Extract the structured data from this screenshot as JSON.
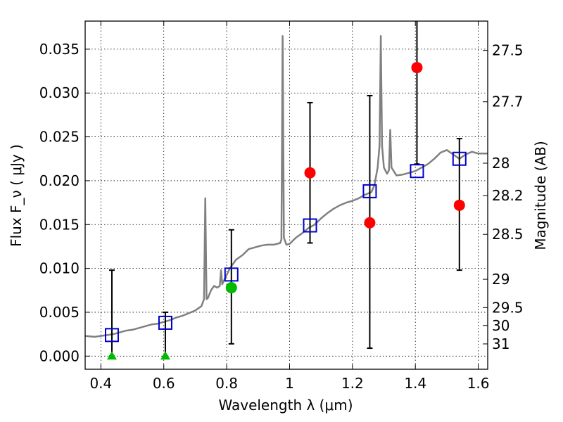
{
  "chart_data": {
    "type": "scatter",
    "xlabel": "Wavelength  λ (μm)",
    "ylabel": "Flux  F_ν  ( μJy )",
    "y2label": "Magnitude (AB)",
    "xlim": [
      0.35,
      1.63
    ],
    "ylim": [
      -0.0015,
      0.0382
    ],
    "grid": true,
    "x_ticks": [
      0.4,
      0.6,
      0.8,
      1.0,
      1.2,
      1.4,
      1.6
    ],
    "x_tick_labels": [
      "0.4",
      "0.6",
      "0.8",
      "1",
      "1.2",
      "1.4",
      "1.6"
    ],
    "y_ticks": [
      0.0,
      0.005,
      0.01,
      0.015,
      0.02,
      0.025,
      0.03,
      0.035
    ],
    "y_tick_labels": [
      "0.000",
      "0.005",
      "0.010",
      "0.015",
      "0.020",
      "0.025",
      "0.030",
      "0.035"
    ],
    "y2_ticks": [
      {
        "label": "27.5",
        "flux": 0.03486
      },
      {
        "label": "27.7",
        "flux": 0.029
      },
      {
        "label": "28",
        "flux": 0.022
      },
      {
        "label": "28.2",
        "flux": 0.0183
      },
      {
        "label": "28.5",
        "flux": 0.01388
      },
      {
        "label": "29",
        "flux": 0.00876
      },
      {
        "label": "29.5",
        "flux": 0.00553
      },
      {
        "label": "30",
        "flux": 0.00349
      },
      {
        "label": "31",
        "flux": 0.00139
      }
    ],
    "model_spectrum": {
      "color": "#808080",
      "points": [
        [
          0.35,
          0.0023
        ],
        [
          0.38,
          0.0022
        ],
        [
          0.4,
          0.0023
        ],
        [
          0.42,
          0.0024
        ],
        [
          0.44,
          0.0025
        ],
        [
          0.46,
          0.0027
        ],
        [
          0.48,
          0.0029
        ],
        [
          0.5,
          0.003
        ],
        [
          0.52,
          0.0032
        ],
        [
          0.54,
          0.0034
        ],
        [
          0.56,
          0.0036
        ],
        [
          0.58,
          0.0037
        ],
        [
          0.6,
          0.0039
        ],
        [
          0.62,
          0.0041
        ],
        [
          0.64,
          0.0044
        ],
        [
          0.66,
          0.0046
        ],
        [
          0.68,
          0.0049
        ],
        [
          0.7,
          0.0052
        ],
        [
          0.72,
          0.0057
        ],
        [
          0.728,
          0.0065
        ],
        [
          0.732,
          0.018
        ],
        [
          0.736,
          0.0065
        ],
        [
          0.74,
          0.0066
        ],
        [
          0.75,
          0.0075
        ],
        [
          0.76,
          0.008
        ],
        [
          0.77,
          0.0078
        ],
        [
          0.778,
          0.008
        ],
        [
          0.782,
          0.0098
        ],
        [
          0.786,
          0.0082
        ],
        [
          0.79,
          0.0085
        ],
        [
          0.81,
          0.01
        ],
        [
          0.83,
          0.011
        ],
        [
          0.85,
          0.0115
        ],
        [
          0.87,
          0.0122
        ],
        [
          0.89,
          0.0124
        ],
        [
          0.91,
          0.0126
        ],
        [
          0.93,
          0.0127
        ],
        [
          0.95,
          0.0127
        ],
        [
          0.97,
          0.0129
        ],
        [
          0.974,
          0.0133
        ],
        [
          0.978,
          0.0365
        ],
        [
          0.982,
          0.0135
        ],
        [
          0.99,
          0.0127
        ],
        [
          1.0,
          0.0128
        ],
        [
          1.02,
          0.0135
        ],
        [
          1.04,
          0.014
        ],
        [
          1.06,
          0.0146
        ],
        [
          1.08,
          0.015
        ],
        [
          1.1,
          0.0157
        ],
        [
          1.12,
          0.0163
        ],
        [
          1.14,
          0.0168
        ],
        [
          1.16,
          0.0172
        ],
        [
          1.18,
          0.0175
        ],
        [
          1.2,
          0.0177
        ],
        [
          1.22,
          0.018
        ],
        [
          1.24,
          0.0184
        ],
        [
          1.26,
          0.0187
        ],
        [
          1.27,
          0.0195
        ],
        [
          1.28,
          0.0215
        ],
        [
          1.286,
          0.024
        ],
        [
          1.29,
          0.0365
        ],
        [
          1.294,
          0.024
        ],
        [
          1.3,
          0.0215
        ],
        [
          1.31,
          0.0208
        ],
        [
          1.316,
          0.0212
        ],
        [
          1.32,
          0.0258
        ],
        [
          1.324,
          0.0215
        ],
        [
          1.34,
          0.0206
        ],
        [
          1.36,
          0.0207
        ],
        [
          1.38,
          0.0209
        ],
        [
          1.4,
          0.0211
        ],
        [
          1.42,
          0.0215
        ],
        [
          1.44,
          0.0219
        ],
        [
          1.46,
          0.0225
        ],
        [
          1.48,
          0.0232
        ],
        [
          1.5,
          0.0235
        ],
        [
          1.52,
          0.023
        ],
        [
          1.54,
          0.0225
        ],
        [
          1.56,
          0.023
        ],
        [
          1.58,
          0.0233
        ],
        [
          1.6,
          0.0231
        ],
        [
          1.63,
          0.0231
        ]
      ]
    },
    "series": [
      {
        "marker": "open-square",
        "color": "#0000cc",
        "x": [
          0.435,
          0.605,
          0.815,
          1.065,
          1.255,
          1.405,
          1.54
        ],
        "y": [
          0.0024,
          0.0038,
          0.0093,
          0.0149,
          0.0188,
          0.0211,
          0.0225
        ]
      },
      {
        "marker": "filled-circle",
        "color": "#ff0000",
        "x": [
          1.065,
          1.255,
          1.405,
          1.54
        ],
        "y": [
          0.0209,
          0.0152,
          0.0329,
          0.0172
        ],
        "yerr_low": [
          0.0129,
          0.0009,
          0.0219,
          0.0098
        ],
        "yerr_high": [
          0.0289,
          0.0297,
          0.0385,
          0.0248
        ]
      },
      {
        "marker": "filled-circle",
        "color": "#00bb00",
        "x": [
          0.815
        ],
        "y": [
          0.0078
        ],
        "yerr_low": [
          0.0014
        ],
        "yerr_high": [
          0.0144
        ]
      },
      {
        "marker": "upper-limit-triangle",
        "color": "#00bb00",
        "x": [
          0.435,
          0.605
        ],
        "y": [
          0.0,
          0.0
        ],
        "yerr_low": [
          0.0,
          0.0
        ],
        "yerr_high": [
          0.0098,
          0.005
        ]
      }
    ]
  }
}
